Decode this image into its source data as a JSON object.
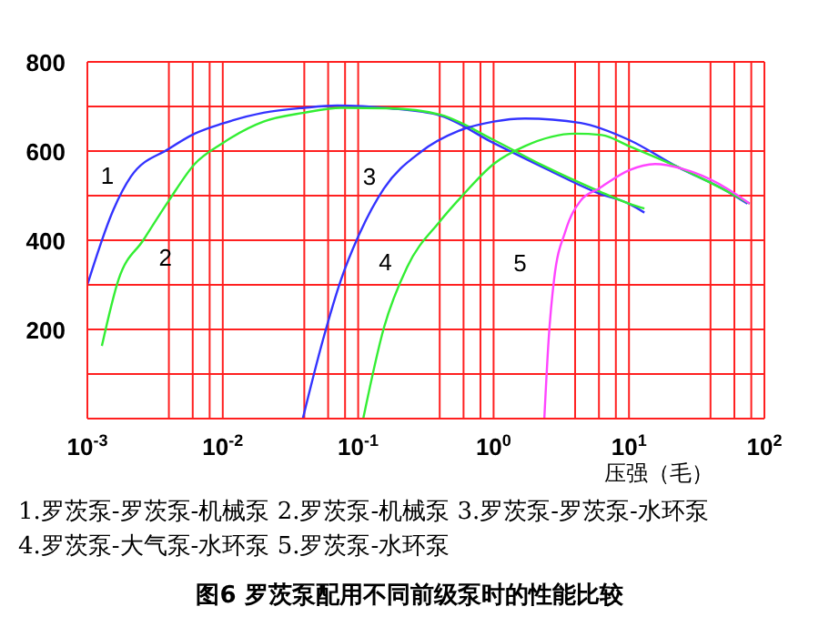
{
  "chart_data": {
    "type": "line",
    "title": "图6 罗茨泵配用不同前级泵时的性能比较",
    "xlabel": "压强（毛）",
    "log": "x",
    "xlim": [
      0.001,
      100
    ],
    "xticks": [
      {
        "value": 0.001,
        "label": "10$^{-3}$"
      },
      {
        "value": 0.004,
        "label": null
      },
      {
        "value": 0.006,
        "label": null
      },
      {
        "value": 0.008,
        "label": null
      },
      {
        "value": 0.01,
        "label": "10$^{-2}$"
      },
      {
        "value": 0.04,
        "label": null
      },
      {
        "value": 0.06,
        "label": null
      },
      {
        "value": 0.08,
        "label": null
      },
      {
        "value": 0.1,
        "label": "10$^{-1}$"
      },
      {
        "value": 0.4,
        "label": null
      },
      {
        "value": 0.6,
        "label": null
      },
      {
        "value": 0.8,
        "label": null
      },
      {
        "value": 1,
        "label": "10$^{0}$"
      },
      {
        "value": 4,
        "label": null
      },
      {
        "value": 6,
        "label": null
      },
      {
        "value": 8,
        "label": null
      },
      {
        "value": 10,
        "label": "10$^{1}$"
      },
      {
        "value": 40,
        "label": null
      },
      {
        "value": 60,
        "label": null
      },
      {
        "value": 80,
        "label": null
      },
      {
        "value": 100,
        "label": "10$^{2}$"
      }
    ],
    "ylim": [
      0,
      800
    ],
    "yticks": [
      {
        "value": 0,
        "label": null
      },
      {
        "value": 100,
        "label": null
      },
      200,
      {
        "value": 300,
        "label": null
      },
      400,
      {
        "value": 500,
        "label": null
      },
      600,
      {
        "value": 700,
        "label": null
      },
      800
    ],
    "grid": true,
    "marker": "none",
    "line_style": "solid",
    "series": [
      {
        "name": "1",
        "color": "#3333ff",
        "x": [
          0.001,
          0.00156,
          0.0021,
          0.004,
          0.0062,
          0.01,
          0.02,
          0.04,
          0.07,
          0.17,
          0.4,
          1,
          2.3,
          6,
          10,
          13
        ],
        "values": [
          300,
          469,
          543,
          605,
          639,
          662,
          686,
          697,
          702,
          696,
          680,
          618,
          564,
          505,
          482,
          462
        ]
      },
      {
        "name": "2",
        "color": "#33ee33",
        "x": [
          0.00128,
          0.0017,
          0.0026,
          0.004,
          0.0062,
          0.01,
          0.02,
          0.04,
          0.075,
          0.17,
          0.4,
          1,
          2.3,
          6,
          10,
          13
        ],
        "values": [
          163,
          312,
          401,
          489,
          571,
          618,
          666,
          686,
          697,
          696,
          682,
          625,
          568,
          510,
          482,
          471
        ]
      },
      {
        "name": "3",
        "color": "#3333ff",
        "x": [
          0.039,
          0.055,
          0.075,
          0.1,
          0.155,
          0.29,
          0.55,
          1,
          1.7,
          4.4,
          10,
          23,
          53,
          75
        ],
        "values": [
          0,
          177,
          313,
          408,
          516,
          598,
          645,
          666,
          673,
          663,
          625,
          564,
          510,
          482
        ]
      },
      {
        "name": "4",
        "color": "#33ee33",
        "x": [
          0.109,
          0.155,
          0.23,
          0.4,
          0.6,
          1,
          1.7,
          4,
          6.3,
          10,
          23,
          53,
          78
        ],
        "values": [
          0,
          204,
          340,
          442,
          503,
          571,
          611,
          639,
          636,
          611,
          564,
          510,
          482
        ]
      },
      {
        "name": "5",
        "color": "#ff44ff",
        "x": [
          2.37,
          2.55,
          2.8,
          3.4,
          4.4,
          6,
          10,
          15.6,
          25,
          53,
          78
        ],
        "values": [
          0,
          177,
          313,
          421,
          489,
          516,
          557,
          571,
          560,
          516,
          482
        ]
      }
    ],
    "annotations": [
      "1.罗茨泵-罗茨泵-机械泵 2.罗茨泵-机械泵 3.罗茨泵-罗茨泵-水环泵",
      "4.罗茨泵-大气泵-水环泵 5.罗茨泵-水环泵"
    ]
  }
}
